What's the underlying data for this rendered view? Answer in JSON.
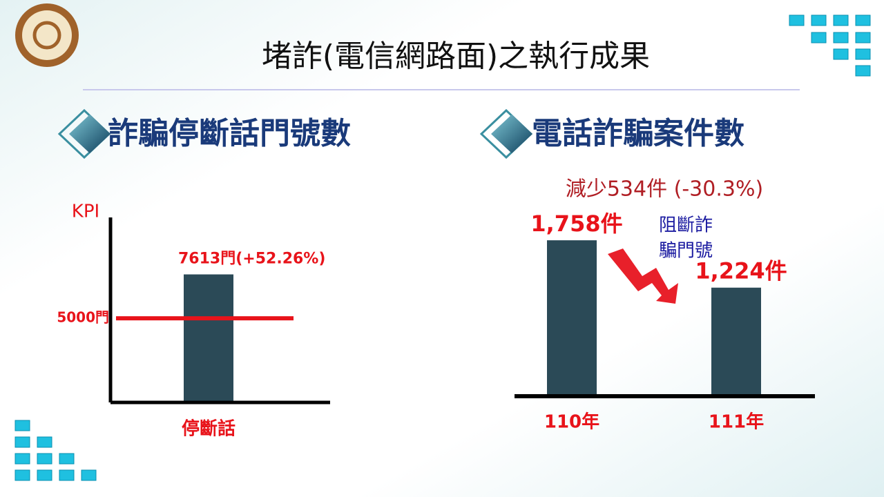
{
  "slide": {
    "title": "堵詐(電信網路面)之執行成果"
  },
  "chart_data": [
    {
      "type": "bar",
      "title": "詐騙停斷話門號數",
      "y_label": "KPI",
      "categories": [
        "停斷話"
      ],
      "values": [
        7613
      ],
      "value_labels": [
        "7613門(+52.26%)"
      ],
      "color": "#2b4a57",
      "ylim": [
        0,
        11000
      ],
      "reference_line": {
        "value": 5000,
        "label": "5000門",
        "color": "#e8131a"
      }
    },
    {
      "type": "bar",
      "title": "電話詐騙案件數",
      "categories": [
        "110年",
        "111年"
      ],
      "values": [
        1758,
        1224
      ],
      "value_labels": [
        "1,758件",
        "1,224件"
      ],
      "color": "#2b4a57",
      "ylim": [
        0,
        2000
      ],
      "annotation": "減少534件 (-30.3%)",
      "note": [
        "阻斷詐",
        "騙門號"
      ]
    }
  ]
}
